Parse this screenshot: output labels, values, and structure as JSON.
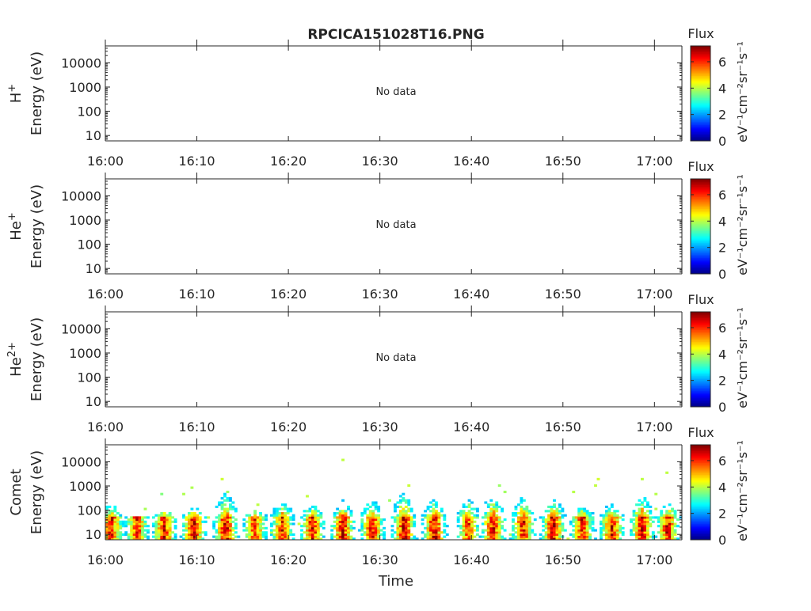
{
  "title": "RPCICA151028T16.PNG",
  "xlabel": "Time",
  "chart_data": {
    "type": "heatmap",
    "title": "RPCICA151028T16.PNG",
    "xlabel": "Time",
    "x_tick_labels": [
      "16:00",
      "16:10",
      "16:20",
      "16:30",
      "16:40",
      "16:50",
      "17:00"
    ],
    "x_range": [
      "16:00",
      "17:03"
    ],
    "y_scale": "log",
    "y_tick_labels": [
      "10",
      "100",
      "1000",
      "10000"
    ],
    "ylim": [
      6,
      50000
    ],
    "colorbar": {
      "title": "Flux",
      "label": "eV⁻¹cm⁻²sr⁻¹s⁻¹",
      "tick_labels": [
        "0",
        "2",
        "4",
        "6"
      ],
      "range": [
        0,
        7.2
      ],
      "colormap": "jet"
    },
    "panels": [
      {
        "species": "H⁺",
        "ylabel": "Energy (eV)",
        "status": "No data",
        "bursts": []
      },
      {
        "species": "He⁺",
        "ylabel": "Energy (eV)",
        "status": "No data",
        "bursts": []
      },
      {
        "species": "He²⁺",
        "ylabel": "Energy (eV)",
        "status": "No data",
        "bursts": []
      },
      {
        "species": "Comet",
        "ylabel": "Energy (eV)",
        "status": "",
        "bursts": [
          {
            "t": 0.5,
            "peak": 6.6,
            "emax": 250
          },
          {
            "t": 3.3,
            "peak": 6.5,
            "emax": 60
          },
          {
            "t": 6.3,
            "peak": 6.6,
            "emax": 90
          },
          {
            "t": 9.5,
            "peak": 6.7,
            "emax": 130
          },
          {
            "t": 13.0,
            "peak": 6.9,
            "emax": 1200
          },
          {
            "t": 16.2,
            "peak": 6.3,
            "emax": 80
          },
          {
            "t": 19.2,
            "peak": 6.4,
            "emax": 300
          },
          {
            "t": 22.5,
            "peak": 6.7,
            "emax": 200
          },
          {
            "t": 25.8,
            "peak": 6.8,
            "emax": 300
          },
          {
            "t": 29.0,
            "peak": 6.8,
            "emax": 400
          },
          {
            "t": 32.5,
            "peak": 6.9,
            "emax": 1100
          },
          {
            "t": 35.8,
            "peak": 7.0,
            "emax": 400
          },
          {
            "t": 39.5,
            "peak": 6.3,
            "emax": 600
          },
          {
            "t": 42.2,
            "peak": 6.8,
            "emax": 700
          },
          {
            "t": 45.5,
            "peak": 6.6,
            "emax": 600
          },
          {
            "t": 48.8,
            "peak": 7.0,
            "emax": 400
          },
          {
            "t": 52.0,
            "peak": 6.7,
            "emax": 150
          },
          {
            "t": 55.2,
            "peak": 6.7,
            "emax": 200
          },
          {
            "t": 58.5,
            "peak": 6.9,
            "emax": 800
          },
          {
            "t": 61.3,
            "peak": 6.6,
            "emax": 300
          }
        ]
      }
    ]
  }
}
